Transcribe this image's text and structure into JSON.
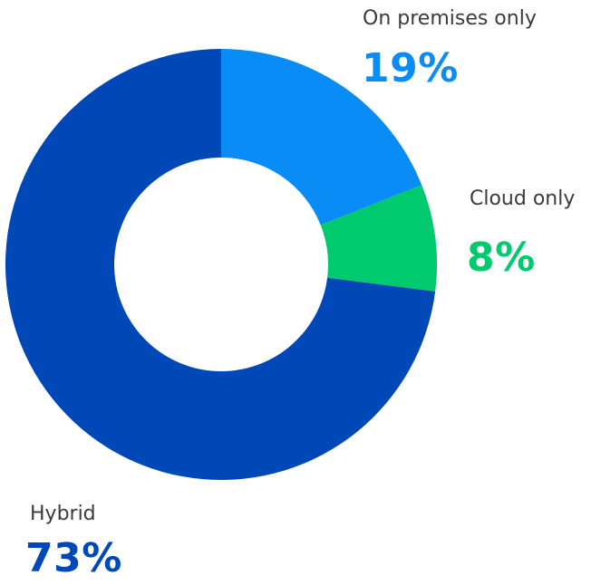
{
  "chart_data": {
    "type": "pie",
    "style": "donut",
    "categories": [
      "On premises only",
      "Cloud only",
      "Hybrid"
    ],
    "values": [
      19,
      8,
      73
    ],
    "value_labels": [
      "19%",
      "8%",
      "73%"
    ],
    "colors": [
      "#0a8cf7",
      "#00c96e",
      "#0047b8"
    ],
    "title": ""
  }
}
